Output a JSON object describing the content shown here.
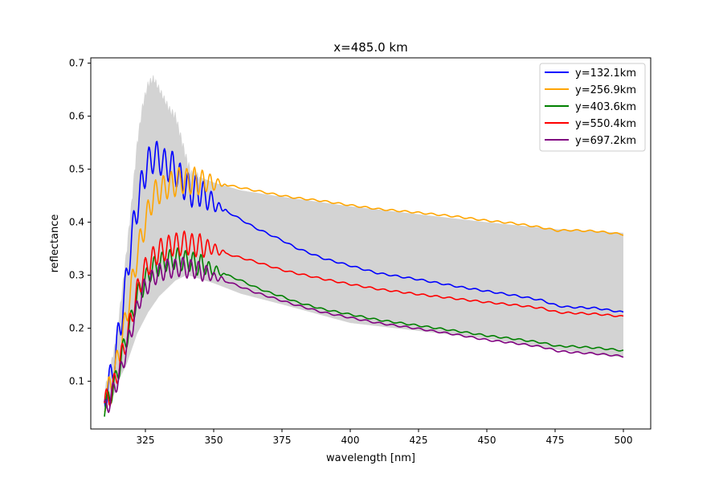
{
  "chart_data": {
    "type": "line",
    "title": "x=485.0 km",
    "xlabel": "wavelength [nm]",
    "ylabel": "reflectance",
    "xlim": [
      305,
      510
    ],
    "ylim": [
      0.01,
      0.71
    ],
    "xticks": [
      325,
      350,
      375,
      400,
      425,
      450,
      475,
      500
    ],
    "yticks": [
      0.1,
      0.2,
      0.3,
      0.4,
      0.5,
      0.6,
      0.7
    ],
    "grid": false,
    "legend_position": "top-right",
    "band": {
      "color": "#d3d3d3",
      "upper": [
        [
          310,
          0.08
        ],
        [
          312,
          0.12
        ],
        [
          314,
          0.17
        ],
        [
          316,
          0.25
        ],
        [
          318,
          0.34
        ],
        [
          320,
          0.44
        ],
        [
          322,
          0.55
        ],
        [
          324,
          0.62
        ],
        [
          326,
          0.66
        ],
        [
          328,
          0.67
        ],
        [
          330,
          0.65
        ],
        [
          332,
          0.63
        ],
        [
          334,
          0.61
        ],
        [
          336,
          0.6
        ],
        [
          338,
          0.56
        ],
        [
          340,
          0.52
        ],
        [
          342,
          0.49
        ],
        [
          345,
          0.485
        ],
        [
          350,
          0.475
        ],
        [
          360,
          0.46
        ],
        [
          375,
          0.448
        ],
        [
          400,
          0.43
        ],
        [
          425,
          0.415
        ],
        [
          450,
          0.4
        ],
        [
          475,
          0.387
        ],
        [
          500,
          0.38
        ]
      ],
      "lower": [
        [
          310,
          0.04
        ],
        [
          312,
          0.06
        ],
        [
          314,
          0.08
        ],
        [
          316,
          0.11
        ],
        [
          318,
          0.13
        ],
        [
          320,
          0.16
        ],
        [
          322,
          0.19
        ],
        [
          324,
          0.21
        ],
        [
          326,
          0.23
        ],
        [
          328,
          0.245
        ],
        [
          330,
          0.26
        ],
        [
          332,
          0.27
        ],
        [
          334,
          0.28
        ],
        [
          336,
          0.29
        ],
        [
          338,
          0.295
        ],
        [
          340,
          0.3
        ],
        [
          342,
          0.298
        ],
        [
          345,
          0.293
        ],
        [
          350,
          0.285
        ],
        [
          360,
          0.265
        ],
        [
          375,
          0.245
        ],
        [
          400,
          0.21
        ],
        [
          425,
          0.195
        ],
        [
          450,
          0.18
        ],
        [
          475,
          0.16
        ],
        [
          500,
          0.145
        ]
      ]
    },
    "series": [
      {
        "name": "y=132.1km",
        "color": "#0000ff",
        "osc": 0.03,
        "points": [
          [
            310,
            0.07
          ],
          [
            312,
            0.1
          ],
          [
            314,
            0.15
          ],
          [
            316,
            0.21
          ],
          [
            318,
            0.29
          ],
          [
            320,
            0.37
          ],
          [
            322,
            0.43
          ],
          [
            324,
            0.48
          ],
          [
            326,
            0.51
          ],
          [
            328,
            0.525
          ],
          [
            330,
            0.52
          ],
          [
            332,
            0.51
          ],
          [
            334,
            0.505
          ],
          [
            336,
            0.5
          ],
          [
            338,
            0.48
          ],
          [
            340,
            0.465
          ],
          [
            342,
            0.46
          ],
          [
            345,
            0.458
          ],
          [
            350,
            0.435
          ],
          [
            355,
            0.42
          ],
          [
            360,
            0.405
          ],
          [
            365,
            0.39
          ],
          [
            370,
            0.378
          ],
          [
            375,
            0.366
          ],
          [
            380,
            0.352
          ],
          [
            390,
            0.332
          ],
          [
            400,
            0.318
          ],
          [
            410,
            0.304
          ],
          [
            425,
            0.292
          ],
          [
            440,
            0.278
          ],
          [
            450,
            0.27
          ],
          [
            460,
            0.262
          ],
          [
            470,
            0.253
          ],
          [
            476,
            0.242
          ],
          [
            480,
            0.24
          ],
          [
            490,
            0.238
          ],
          [
            500,
            0.23
          ]
        ]
      },
      {
        "name": "y=256.9km",
        "color": "#ffa500",
        "osc": 0.025,
        "points": [
          [
            310,
            0.065
          ],
          [
            312,
            0.09
          ],
          [
            314,
            0.12
          ],
          [
            316,
            0.17
          ],
          [
            318,
            0.22
          ],
          [
            320,
            0.28
          ],
          [
            322,
            0.34
          ],
          [
            324,
            0.38
          ],
          [
            326,
            0.42
          ],
          [
            328,
            0.45
          ],
          [
            330,
            0.46
          ],
          [
            332,
            0.465
          ],
          [
            334,
            0.47
          ],
          [
            336,
            0.475
          ],
          [
            338,
            0.478
          ],
          [
            340,
            0.478
          ],
          [
            345,
            0.477
          ],
          [
            350,
            0.474
          ],
          [
            355,
            0.47
          ],
          [
            360,
            0.465
          ],
          [
            365,
            0.46
          ],
          [
            370,
            0.455
          ],
          [
            375,
            0.45
          ],
          [
            380,
            0.446
          ],
          [
            390,
            0.44
          ],
          [
            400,
            0.432
          ],
          [
            410,
            0.425
          ],
          [
            425,
            0.418
          ],
          [
            440,
            0.41
          ],
          [
            450,
            0.403
          ],
          [
            460,
            0.398
          ],
          [
            470,
            0.39
          ],
          [
            476,
            0.384
          ],
          [
            480,
            0.385
          ],
          [
            490,
            0.383
          ],
          [
            500,
            0.377
          ]
        ]
      },
      {
        "name": "y=403.6km",
        "color": "#008000",
        "osc": 0.02,
        "points": [
          [
            310,
            0.05
          ],
          [
            312,
            0.07
          ],
          [
            314,
            0.1
          ],
          [
            316,
            0.14
          ],
          [
            318,
            0.18
          ],
          [
            320,
            0.22
          ],
          [
            322,
            0.26
          ],
          [
            324,
            0.28
          ],
          [
            326,
            0.3
          ],
          [
            328,
            0.315
          ],
          [
            330,
            0.32
          ],
          [
            332,
            0.325
          ],
          [
            334,
            0.33
          ],
          [
            336,
            0.33
          ],
          [
            338,
            0.33
          ],
          [
            340,
            0.327
          ],
          [
            345,
            0.32
          ],
          [
            350,
            0.31
          ],
          [
            355,
            0.3
          ],
          [
            360,
            0.29
          ],
          [
            365,
            0.278
          ],
          [
            370,
            0.268
          ],
          [
            375,
            0.26
          ],
          [
            380,
            0.25
          ],
          [
            390,
            0.236
          ],
          [
            400,
            0.226
          ],
          [
            410,
            0.216
          ],
          [
            425,
            0.205
          ],
          [
            440,
            0.194
          ],
          [
            450,
            0.186
          ],
          [
            460,
            0.18
          ],
          [
            470,
            0.173
          ],
          [
            476,
            0.166
          ],
          [
            480,
            0.166
          ],
          [
            490,
            0.163
          ],
          [
            500,
            0.158
          ]
        ]
      },
      {
        "name": "y=550.4km",
        "color": "#ff0000",
        "osc": 0.022,
        "points": [
          [
            310,
            0.055
          ],
          [
            312,
            0.075
          ],
          [
            314,
            0.1
          ],
          [
            316,
            0.14
          ],
          [
            318,
            0.18
          ],
          [
            320,
            0.22
          ],
          [
            322,
            0.27
          ],
          [
            324,
            0.3
          ],
          [
            326,
            0.32
          ],
          [
            328,
            0.335
          ],
          [
            330,
            0.345
          ],
          [
            332,
            0.35
          ],
          [
            334,
            0.355
          ],
          [
            336,
            0.358
          ],
          [
            338,
            0.36
          ],
          [
            340,
            0.36
          ],
          [
            345,
            0.355
          ],
          [
            350,
            0.35
          ],
          [
            355,
            0.34
          ],
          [
            360,
            0.333
          ],
          [
            365,
            0.326
          ],
          [
            370,
            0.318
          ],
          [
            375,
            0.31
          ],
          [
            380,
            0.304
          ],
          [
            390,
            0.293
          ],
          [
            400,
            0.283
          ],
          [
            410,
            0.274
          ],
          [
            425,
            0.264
          ],
          [
            440,
            0.255
          ],
          [
            450,
            0.249
          ],
          [
            460,
            0.244
          ],
          [
            470,
            0.238
          ],
          [
            476,
            0.23
          ],
          [
            480,
            0.229
          ],
          [
            490,
            0.227
          ],
          [
            500,
            0.222
          ]
        ]
      },
      {
        "name": "y=697.2km",
        "color": "#800080",
        "osc": 0.018,
        "points": [
          [
            310,
            0.045
          ],
          [
            312,
            0.065
          ],
          [
            314,
            0.09
          ],
          [
            316,
            0.12
          ],
          [
            318,
            0.16
          ],
          [
            320,
            0.2
          ],
          [
            322,
            0.24
          ],
          [
            324,
            0.27
          ],
          [
            326,
            0.285
          ],
          [
            328,
            0.295
          ],
          [
            330,
            0.305
          ],
          [
            332,
            0.31
          ],
          [
            334,
            0.312
          ],
          [
            336,
            0.314
          ],
          [
            338,
            0.315
          ],
          [
            340,
            0.314
          ],
          [
            345,
            0.308
          ],
          [
            350,
            0.298
          ],
          [
            355,
            0.288
          ],
          [
            360,
            0.278
          ],
          [
            365,
            0.268
          ],
          [
            370,
            0.26
          ],
          [
            375,
            0.252
          ],
          [
            380,
            0.244
          ],
          [
            390,
            0.23
          ],
          [
            400,
            0.22
          ],
          [
            410,
            0.21
          ],
          [
            425,
            0.199
          ],
          [
            440,
            0.187
          ],
          [
            450,
            0.178
          ],
          [
            460,
            0.172
          ],
          [
            470,
            0.165
          ],
          [
            476,
            0.157
          ],
          [
            480,
            0.155
          ],
          [
            490,
            0.152
          ],
          [
            500,
            0.147
          ]
        ]
      }
    ]
  }
}
